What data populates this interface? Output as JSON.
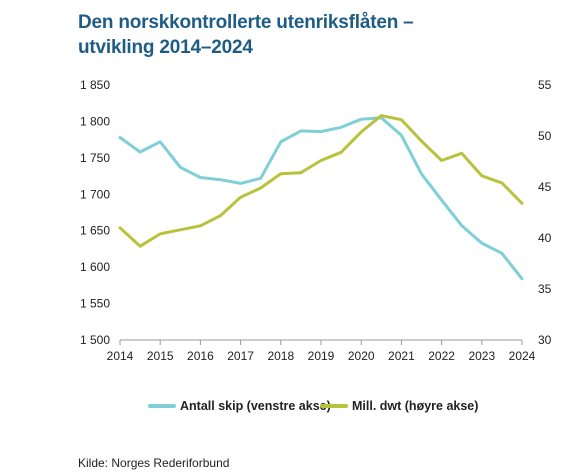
{
  "header": {
    "title_line1": "Den norskkontrollerte utenriksflåten –",
    "title_line2": "utvikling 2014–2024"
  },
  "footer": {
    "source": "Kilde: Norges Rederiforbund"
  },
  "colors": {
    "left_series": "#7ecfd6",
    "right_series": "#b9c23c",
    "title": "#1f5c85",
    "axis": "#999999"
  },
  "chart_data": {
    "type": "line",
    "title": "",
    "xlabel": "",
    "ylabel": "",
    "xlim": [
      2014,
      2024
    ],
    "x_ticks": [
      "2014",
      "2015",
      "2016",
      "2017",
      "2018",
      "2019",
      "2020",
      "2021",
      "2022",
      "2023",
      "2024"
    ],
    "ylim_left": [
      1500,
      1850
    ],
    "left_ticks": [
      {
        "value": 1500,
        "label": "1 500"
      },
      {
        "value": 1550,
        "label": "1 550"
      },
      {
        "value": 1600,
        "label": "1 600"
      },
      {
        "value": 1650,
        "label": "1 650"
      },
      {
        "value": 1700,
        "label": "1 700"
      },
      {
        "value": 1750,
        "label": "1 750"
      },
      {
        "value": 1800,
        "label": "1 800"
      },
      {
        "value": 1850,
        "label": "1 850"
      }
    ],
    "ylim_right": [
      30,
      55
    ],
    "right_ticks": [
      {
        "value": 30,
        "label": "30"
      },
      {
        "value": 35,
        "label": "35"
      },
      {
        "value": 40,
        "label": "40"
      },
      {
        "value": 45,
        "label": "45"
      },
      {
        "value": 50,
        "label": "50"
      },
      {
        "value": 55,
        "label": "55"
      }
    ],
    "grid": false,
    "legend_position": "bottom",
    "series": [
      {
        "name": "Antall skip (venstre akse)",
        "axis": "left",
        "color": "#7ecfd6",
        "x": [
          2014,
          2014.5,
          2015,
          2015.5,
          2016,
          2016.5,
          2017,
          2017.5,
          2018,
          2018.5,
          2019,
          2019.5,
          2020,
          2020.5,
          2021,
          2021.5,
          2022,
          2022.5,
          2023,
          2023.5,
          2024
        ],
        "values": [
          1778,
          1758,
          1772,
          1737,
          1723,
          1720,
          1715,
          1722,
          1772,
          1787,
          1786,
          1792,
          1803,
          1805,
          1781,
          1728,
          1692,
          1657,
          1633,
          1619,
          1584
        ]
      },
      {
        "name": "Mill. dwt (høyre akse)",
        "axis": "right",
        "color": "#b9c23c",
        "x": [
          2014,
          2014.5,
          2015,
          2015.5,
          2016,
          2016.5,
          2017,
          2017.5,
          2018,
          2018.5,
          2019,
          2019.5,
          2020,
          2020.5,
          2021,
          2021.5,
          2022,
          2022.5,
          2023,
          2023.5,
          2024
        ],
        "values": [
          41,
          39.2,
          40.4,
          40.8,
          41.2,
          42.2,
          44,
          44.9,
          46.3,
          46.4,
          47.6,
          48.4,
          50.4,
          52,
          51.6,
          49.5,
          47.6,
          48.3,
          46.1,
          45.4,
          43.4
        ]
      }
    ]
  }
}
